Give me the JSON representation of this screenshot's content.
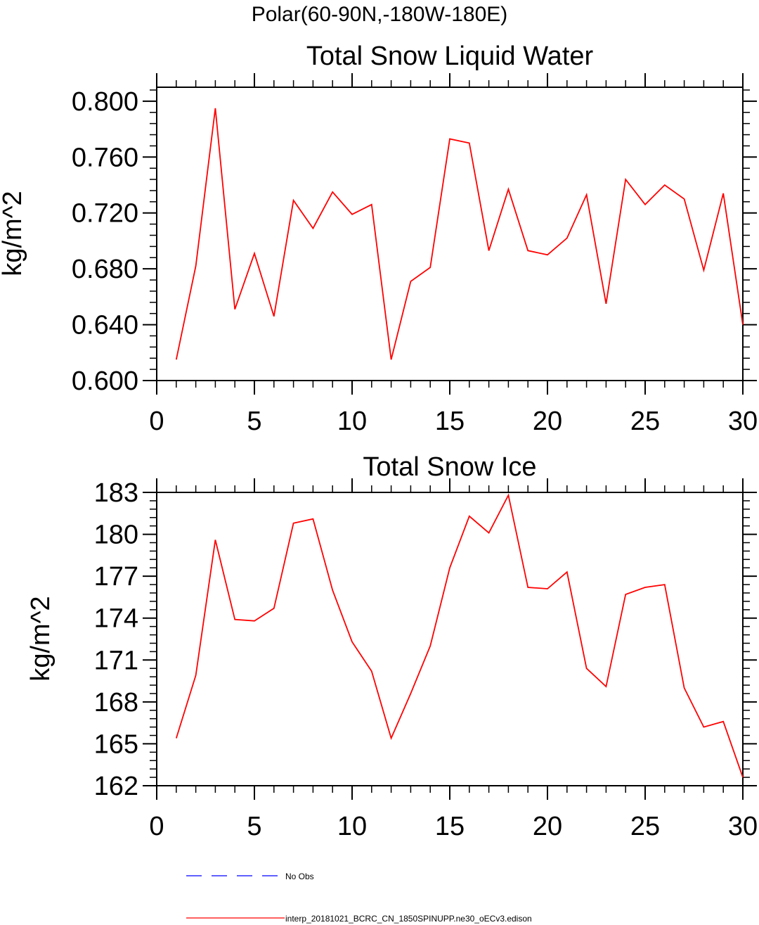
{
  "page_title": "Polar(60-90N,-180W-180E)",
  "legend": {
    "obs_label": "No Obs",
    "obs_color": "#0000ff",
    "model_label": "interp_20181021_BCRC_CN_1850SPINUPP.ne30_oECv3.edison",
    "model_color": "#ff0000"
  },
  "chart_data": [
    {
      "type": "line",
      "title": "Total Snow Liquid Water",
      "xlabel": "",
      "ylabel": "kg/m^2",
      "xlim": [
        0,
        30
      ],
      "ylim": [
        0.6,
        0.81
      ],
      "xticks": [
        0,
        5,
        10,
        15,
        20,
        25,
        30
      ],
      "yticks": [
        0.6,
        0.64,
        0.68,
        0.72,
        0.76,
        0.8
      ],
      "ytick_labels": [
        "0.600",
        "0.640",
        "0.680",
        "0.720",
        "0.760",
        "0.800"
      ],
      "grid": false,
      "x": [
        1,
        2,
        3,
        4,
        5,
        6,
        7,
        8,
        9,
        10,
        11,
        12,
        13,
        14,
        15,
        16,
        17,
        18,
        19,
        20,
        21,
        22,
        23,
        24,
        25,
        26,
        27,
        28,
        29,
        30
      ],
      "series": [
        {
          "color": "#ff0000",
          "values": [
            0.615,
            0.682,
            0.795,
            0.651,
            0.691,
            0.646,
            0.729,
            0.709,
            0.735,
            0.719,
            0.726,
            0.615,
            0.671,
            0.681,
            0.773,
            0.77,
            0.693,
            0.737,
            0.693,
            0.69,
            0.702,
            0.733,
            0.655,
            0.744,
            0.726,
            0.74,
            0.73,
            0.679,
            0.734,
            0.64
          ]
        }
      ]
    },
    {
      "type": "line",
      "title": "Total Snow Ice",
      "xlabel": "",
      "ylabel": "kg/m^2",
      "xlim": [
        0,
        30
      ],
      "ylim": [
        162,
        183
      ],
      "xticks": [
        0,
        5,
        10,
        15,
        20,
        25,
        30
      ],
      "yticks": [
        162,
        165,
        168,
        171,
        174,
        177,
        180,
        183
      ],
      "ytick_labels": [
        "162",
        "165",
        "168",
        "171",
        "174",
        "177",
        "180",
        "183"
      ],
      "grid": false,
      "x": [
        1,
        2,
        3,
        4,
        5,
        6,
        7,
        8,
        9,
        10,
        11,
        12,
        13,
        14,
        15,
        16,
        17,
        18,
        19,
        20,
        21,
        22,
        23,
        24,
        25,
        26,
        27,
        28,
        29,
        30
      ],
      "series": [
        {
          "color": "#ff0000",
          "values": [
            165.4,
            169.9,
            179.6,
            173.9,
            173.8,
            174.7,
            180.8,
            181.1,
            176.0,
            172.3,
            170.2,
            165.4,
            168.6,
            172.0,
            177.6,
            181.3,
            180.1,
            182.8,
            176.2,
            176.1,
            177.3,
            170.4,
            169.1,
            175.7,
            176.2,
            176.4,
            169.0,
            166.2,
            166.6,
            162.6
          ]
        }
      ]
    }
  ]
}
